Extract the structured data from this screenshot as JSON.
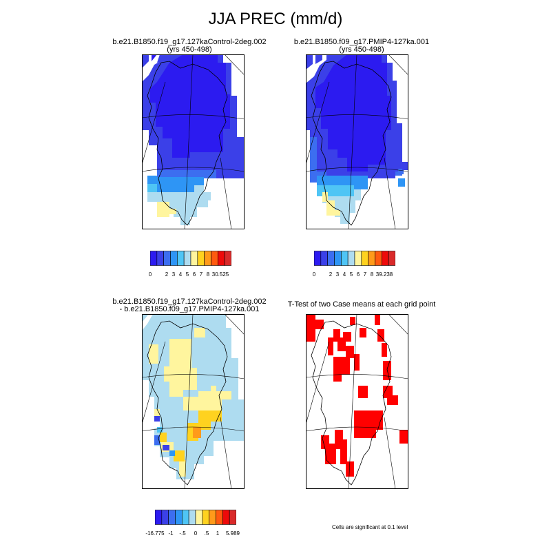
{
  "main_title": "JJA PREC (mm/d)",
  "panels": {
    "p1": {
      "title1": "b.e21.B1850.f19_g17.127kaControl-2deg.002",
      "title2": "(yrs 450-498)"
    },
    "p2": {
      "title1": "b.e21.B1850.f09_g17.PMIP4-127ka.001",
      "title2": "(yrs 450-498)"
    },
    "p3": {
      "title1": "b.e21.B1850.f19_g17.127kaControl-2deg.002",
      "title2": "- b.e21.B1850.f09_g17.PMIP4-127ka.001"
    },
    "p4": {
      "title1": "T-Test of two Case means at each grid point"
    }
  },
  "colorbars": {
    "cb1": {
      "labels": [
        "0",
        "2",
        "3",
        "4",
        "5",
        "6",
        "7",
        "8",
        "30.525"
      ],
      "colors": [
        "#2c1bf0",
        "#3b40e8",
        "#3c6ef0",
        "#2e95f5",
        "#4fc5f5",
        "#aedcf0",
        "#fff59e",
        "#ffd21f",
        "#ff9a1a",
        "#ff5a0f",
        "#ee0a0a",
        "#d92a2a"
      ]
    },
    "cb2": {
      "labels": [
        "0",
        "2",
        "3",
        "4",
        "5",
        "6",
        "7",
        "8",
        "39.238"
      ],
      "colors": [
        "#2c1bf0",
        "#3b40e8",
        "#3c6ef0",
        "#2e95f5",
        "#4fc5f5",
        "#aedcf0",
        "#fff59e",
        "#ffd21f",
        "#ff9a1a",
        "#ff5a0f",
        "#ee0a0a",
        "#d92a2a"
      ]
    },
    "cb3": {
      "labels": [
        "-16.775",
        "-1",
        "-.5",
        "0",
        ".5",
        "1",
        "5.989"
      ],
      "colors": [
        "#2c1bf0",
        "#3b40e8",
        "#3c6ef0",
        "#2e95f5",
        "#4fc5f5",
        "#aedcf0",
        "#fff59e",
        "#ffd21f",
        "#ff9a1a",
        "#ff5a0f",
        "#ee0a0a",
        "#d92a2a"
      ]
    }
  },
  "significance_note": "Cells are significant at 0.1 level",
  "colors": {
    "sig": "#ff0000",
    "blue_dark": "#2c1bf0",
    "blue_mid": "#3b40e8",
    "blue_2": "#3c6ef0",
    "blue_3": "#2e95f5",
    "light_blue": "#aedcf0",
    "yellow_pale": "#fff59e",
    "yellow": "#ffd21f",
    "orange": "#ff9a1a"
  }
}
